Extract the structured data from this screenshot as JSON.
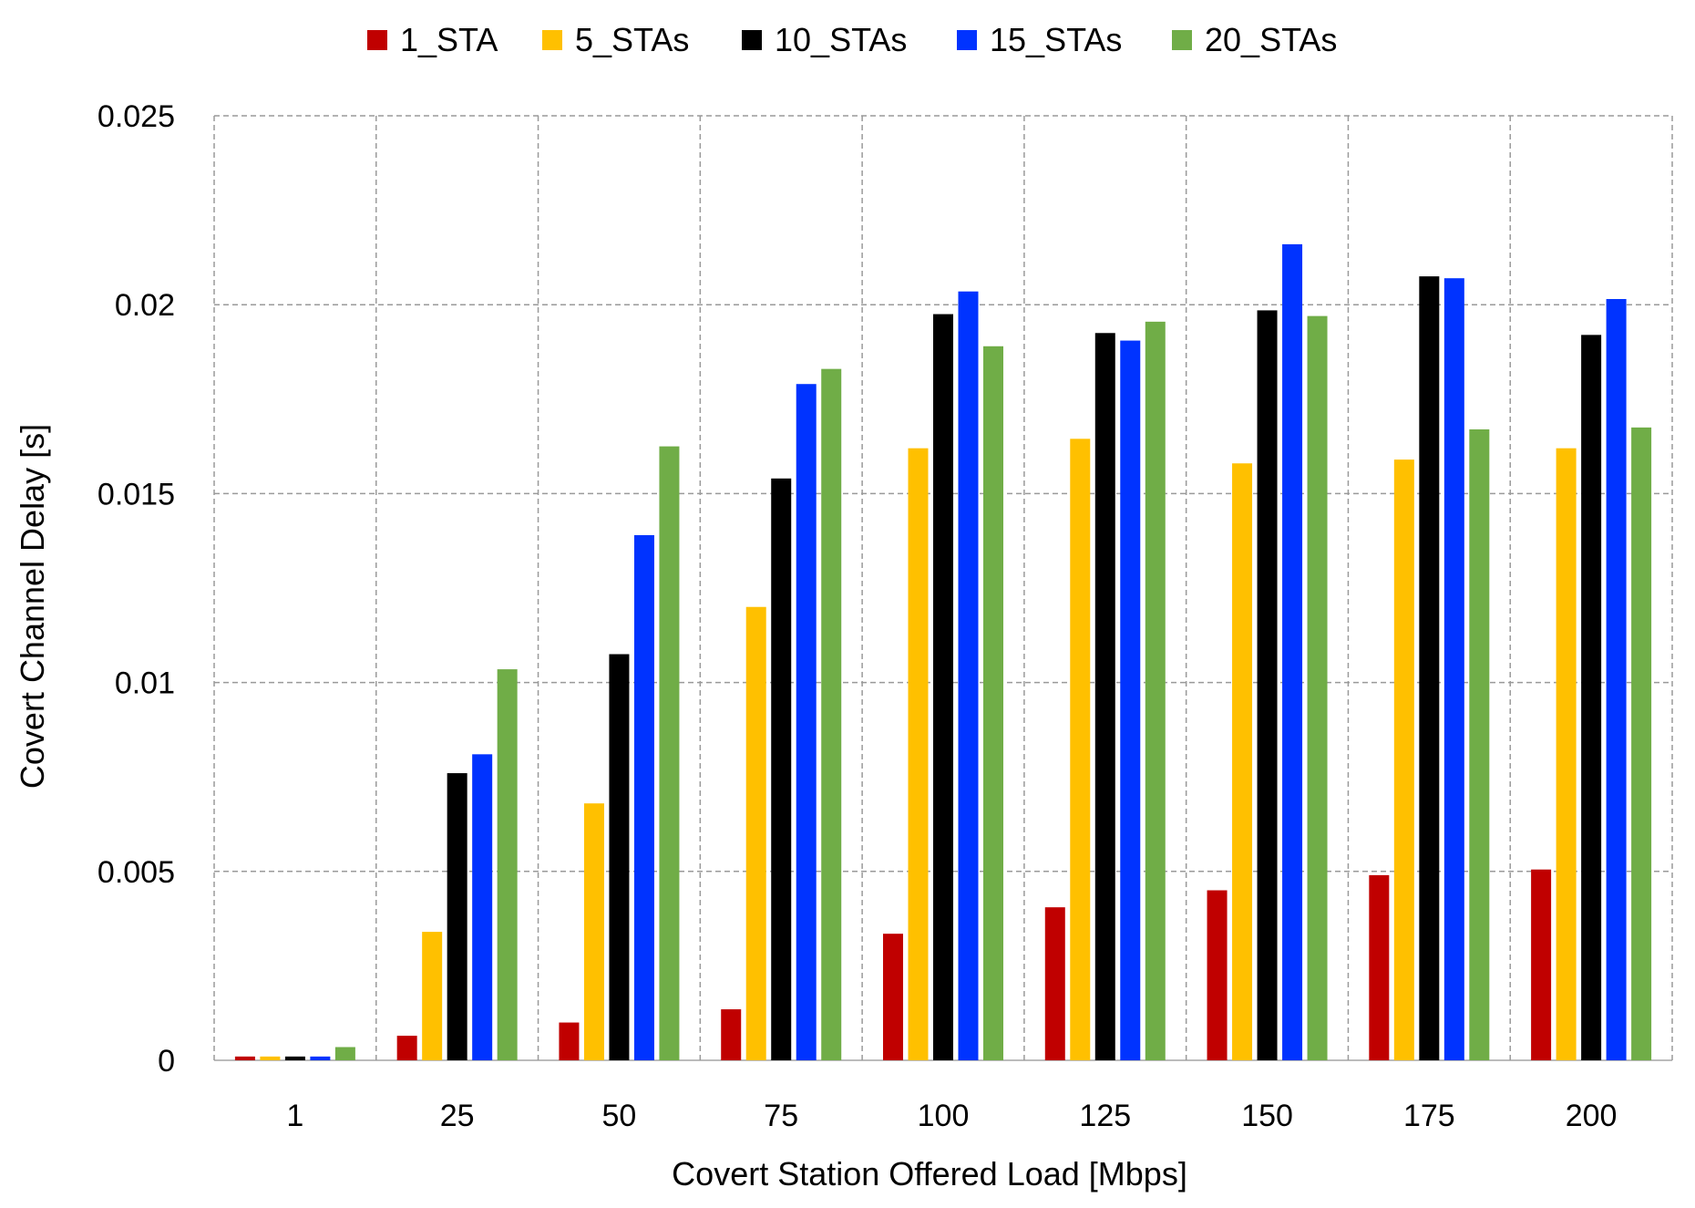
{
  "chart_data": {
    "type": "bar",
    "title": "",
    "xlabel": "Covert Station Offered Load [Mbps]",
    "ylabel": "Covert Channel Delay [s]",
    "categories": [
      "1",
      "25",
      "50",
      "75",
      "100",
      "125",
      "150",
      "175",
      "200"
    ],
    "ylim": [
      0,
      0.025
    ],
    "yticks": [
      0,
      0.005,
      0.01,
      0.015,
      0.02,
      0.025
    ],
    "ytick_labels": [
      "0",
      "0.005",
      "0.01",
      "0.015",
      "0.02",
      "0.025"
    ],
    "grid": true,
    "legend_position": "top-center",
    "series": [
      {
        "name": "1_STA",
        "color": "#C00000",
        "values": [
          0.0001,
          0.00065,
          0.001,
          0.00135,
          0.00335,
          0.00405,
          0.0045,
          0.0049,
          0.00505
        ]
      },
      {
        "name": "5_STAs",
        "color": "#FFC000",
        "values": [
          0.0001,
          0.0034,
          0.0068,
          0.012,
          0.0162,
          0.01645,
          0.0158,
          0.0159,
          0.0162
        ]
      },
      {
        "name": "10_STAs",
        "color": "#000000",
        "values": [
          0.0001,
          0.0076,
          0.01075,
          0.0154,
          0.01975,
          0.01925,
          0.01985,
          0.02075,
          0.0192
        ]
      },
      {
        "name": "15_STAs",
        "color": "#0033FF",
        "values": [
          0.0001,
          0.0081,
          0.0139,
          0.0179,
          0.02035,
          0.01905,
          0.0216,
          0.0207,
          0.02015
        ]
      },
      {
        "name": "20_STAs",
        "color": "#70AD47",
        "values": [
          0.00035,
          0.01035,
          0.01625,
          0.0183,
          0.0189,
          0.01955,
          0.0197,
          0.0167,
          0.01675
        ]
      }
    ]
  }
}
